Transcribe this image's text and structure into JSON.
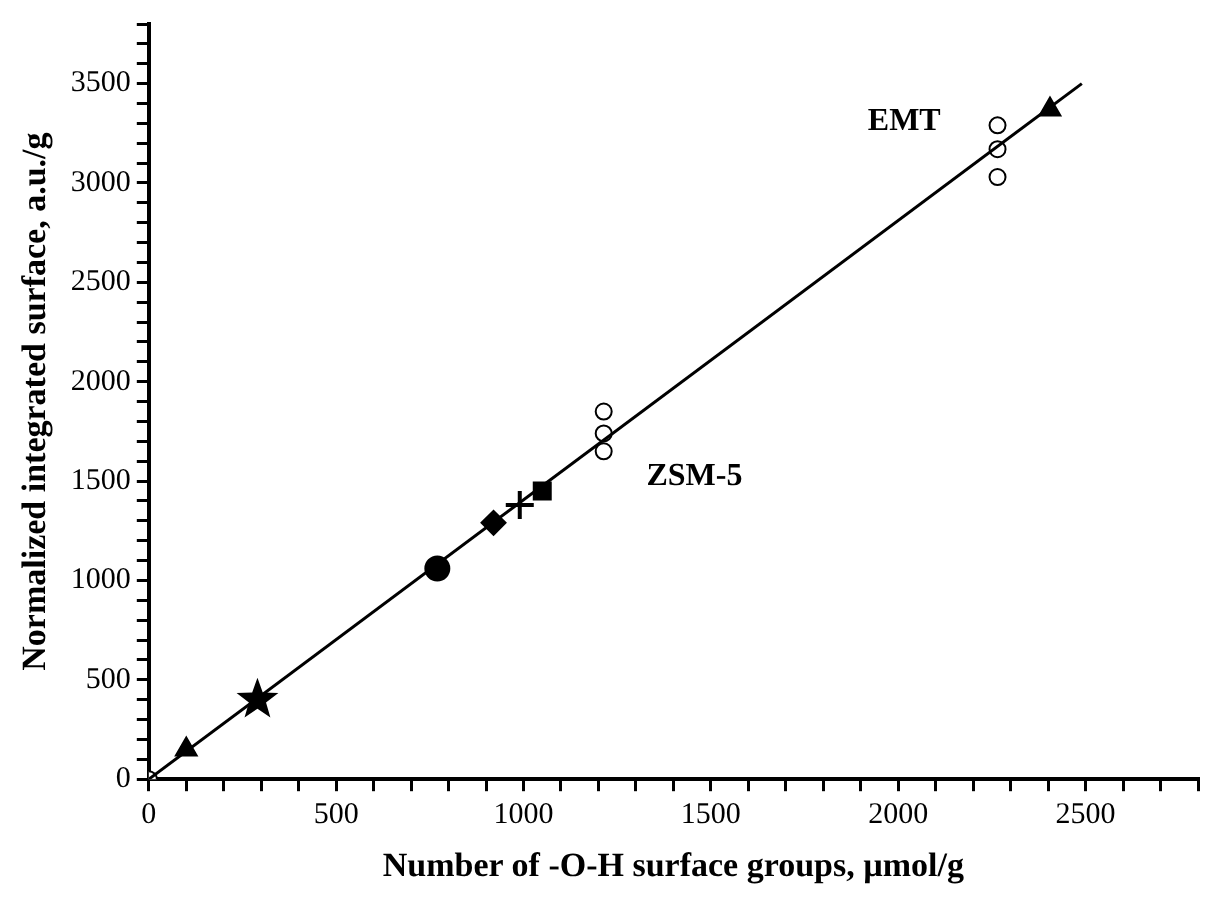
{
  "chart_data": {
    "type": "scatter",
    "xlabel": "Number of -O-H surface groups, µmol/g",
    "ylabel": "Normalized integrated surface, a.u./g",
    "xlim": [
      0,
      2800
    ],
    "ylim": [
      0,
      3800
    ],
    "xticks": [
      0,
      {
        "value": 100,
        "label": null
      },
      {
        "value": 200,
        "label": null
      },
      {
        "value": 300,
        "label": null
      },
      {
        "value": 400,
        "label": null
      },
      500,
      {
        "value": 600,
        "label": null
      },
      {
        "value": 700,
        "label": null
      },
      {
        "value": 800,
        "label": null
      },
      {
        "value": 900,
        "label": null
      },
      1000,
      {
        "value": 1100,
        "label": null
      },
      {
        "value": 1200,
        "label": null
      },
      {
        "value": 1300,
        "label": null
      },
      {
        "value": 1400,
        "label": null
      },
      1500,
      {
        "value": 1600,
        "label": null
      },
      {
        "value": 1700,
        "label": null
      },
      {
        "value": 1800,
        "label": null
      },
      {
        "value": 1900,
        "label": null
      },
      2000,
      {
        "value": 2100,
        "label": null
      },
      {
        "value": 2200,
        "label": null
      },
      {
        "value": 2300,
        "label": null
      },
      {
        "value": 2400,
        "label": null
      },
      2500,
      {
        "value": 2600,
        "label": null
      },
      {
        "value": 2700,
        "label": null
      },
      {
        "value": 2800,
        "label": null
      }
    ],
    "yticks": [
      0,
      {
        "value": 100,
        "label": null
      },
      {
        "value": 200,
        "label": null
      },
      {
        "value": 300,
        "label": null
      },
      {
        "value": 400,
        "label": null
      },
      500,
      {
        "value": 600,
        "label": null
      },
      {
        "value": 700,
        "label": null
      },
      {
        "value": 800,
        "label": null
      },
      {
        "value": 900,
        "label": null
      },
      1000,
      {
        "value": 1100,
        "label": null
      },
      {
        "value": 1200,
        "label": null
      },
      {
        "value": 1300,
        "label": null
      },
      {
        "value": 1400,
        "label": null
      },
      1500,
      {
        "value": 1600,
        "label": null
      },
      {
        "value": 1700,
        "label": null
      },
      {
        "value": 1800,
        "label": null
      },
      {
        "value": 1900,
        "label": null
      },
      2000,
      {
        "value": 2100,
        "label": null
      },
      {
        "value": 2200,
        "label": null
      },
      {
        "value": 2300,
        "label": null
      },
      {
        "value": 2400,
        "label": null
      },
      2500,
      {
        "value": 2600,
        "label": null
      },
      {
        "value": 2700,
        "label": null
      },
      {
        "value": 2800,
        "label": null
      },
      {
        "value": 2900,
        "label": null
      },
      3000,
      {
        "value": 3100,
        "label": null
      },
      {
        "value": 3200,
        "label": null
      },
      {
        "value": 3300,
        "label": null
      },
      {
        "value": 3400,
        "label": null
      },
      3500,
      {
        "value": 3600,
        "label": null
      },
      {
        "value": 3700,
        "label": null
      },
      {
        "value": 3800,
        "label": null
      }
    ],
    "grid": false,
    "legend": false,
    "series": [
      {
        "type": "line",
        "color": "#000000",
        "marker": "none",
        "line_style": "solid",
        "x": [
          0,
          2490
        ],
        "values": [
          0,
          3500
        ]
      },
      {
        "color": "#ffffff",
        "marker": "circle",
        "x": [
          0,
          1214,
          1214,
          1214,
          2265,
          2265,
          2265
        ],
        "values": [
          0,
          1850,
          1740,
          1650,
          3290,
          3170,
          3030
        ]
      },
      {
        "color": "#000000",
        "marker": "triangle",
        "x": [
          100,
          2405
        ],
        "values": [
          150,
          3370
        ]
      },
      {
        "color": "#000000",
        "marker": "star",
        "x": [
          290
        ],
        "values": [
          400
        ]
      },
      {
        "color": "#000000",
        "marker": "circle",
        "x": [
          770
        ],
        "values": [
          1060
        ]
      },
      {
        "color": "#000000",
        "marker": "diamond",
        "x": [
          920
        ],
        "values": [
          1290
        ]
      },
      {
        "color": "#000000",
        "marker": "cross",
        "x": [
          990
        ],
        "values": [
          1380
        ]
      },
      {
        "color": "#000000",
        "marker": "square",
        "x": [
          1050
        ],
        "values": [
          1450
        ]
      }
    ],
    "annotations": [
      "ZSM-5",
      "EMT"
    ]
  }
}
